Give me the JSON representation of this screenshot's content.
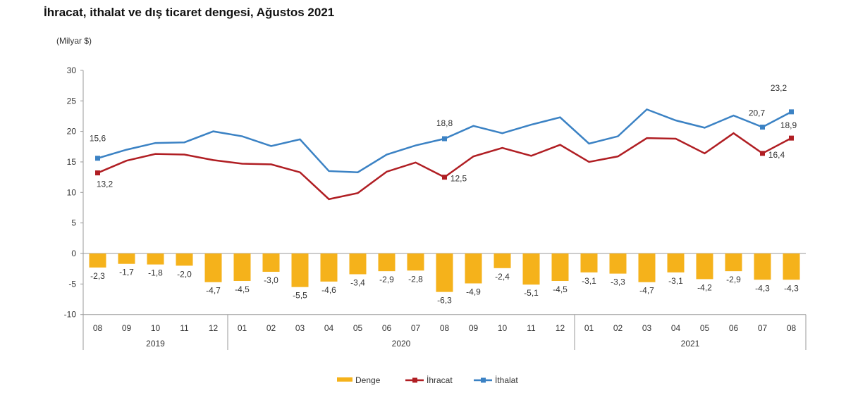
{
  "chart_data": {
    "type": "bar+line",
    "title": "İhracat, ithalat ve dış ticaret dengesi, Ağustos 2021",
    "ylabel": "(Milyar $)",
    "ylim": [
      -10,
      30
    ],
    "yticks": [
      30,
      25,
      20,
      15,
      10,
      5,
      0,
      -5,
      -10
    ],
    "categories": [
      "08",
      "09",
      "10",
      "11",
      "12",
      "01",
      "02",
      "03",
      "04",
      "05",
      "06",
      "07",
      "08",
      "09",
      "10",
      "11",
      "12",
      "01",
      "02",
      "03",
      "04",
      "05",
      "06",
      "07",
      "08"
    ],
    "years": [
      {
        "label": "2019",
        "span": 5
      },
      {
        "label": "2020",
        "span": 12
      },
      {
        "label": "2021",
        "span": 8
      }
    ],
    "legend_position": "bottom",
    "series": [
      {
        "name": "Denge",
        "type": "bar",
        "color": "#f5b21b",
        "values": [
          -2.3,
          -1.7,
          -1.8,
          -2.0,
          -4.7,
          -4.5,
          -3.0,
          -5.5,
          -4.6,
          -3.4,
          -2.9,
          -2.8,
          -6.3,
          -4.9,
          -2.4,
          -5.1,
          -4.5,
          -3.1,
          -3.3,
          -4.7,
          -3.1,
          -4.2,
          -2.9,
          -4.3,
          -4.3
        ],
        "labels": [
          "-2,3",
          "-1,7",
          "-1,8",
          "-2,0",
          "-4,7",
          "-4,5",
          "-3,0",
          "-5,5",
          "-4,6",
          "-3,4",
          "-2,9",
          "-2,8",
          "-6,3",
          "-4,9",
          "-2,4",
          "-5,1",
          "-4,5",
          "-3,1",
          "-3,3",
          "-4,7",
          "-3,1",
          "-4,2",
          "-2,9",
          "-4,3",
          "-4,3"
        ]
      },
      {
        "name": "İhracat",
        "type": "line",
        "color": "#b01e23",
        "values": [
          13.2,
          15.2,
          16.3,
          16.2,
          15.3,
          14.7,
          14.6,
          13.3,
          8.9,
          9.9,
          13.4,
          14.9,
          12.5,
          15.9,
          17.3,
          16.0,
          17.8,
          15.0,
          15.9,
          18.9,
          18.8,
          16.4,
          19.7,
          16.4,
          18.9
        ],
        "point_labels": {
          "0": "13,2",
          "12": "12,5",
          "23": "16,4",
          "24": "18,9"
        }
      },
      {
        "name": "İthalat",
        "type": "line",
        "color": "#3b82c4",
        "values": [
          15.6,
          17.0,
          18.1,
          18.2,
          20.0,
          19.2,
          17.6,
          18.7,
          13.5,
          13.3,
          16.2,
          17.7,
          18.8,
          20.9,
          19.7,
          21.1,
          22.3,
          18.0,
          19.2,
          23.6,
          21.8,
          20.6,
          22.6,
          20.7,
          23.2
        ],
        "point_labels": {
          "0": "15,6",
          "12": "18,8",
          "23": "20,7",
          "24": "23,2"
        }
      }
    ]
  }
}
